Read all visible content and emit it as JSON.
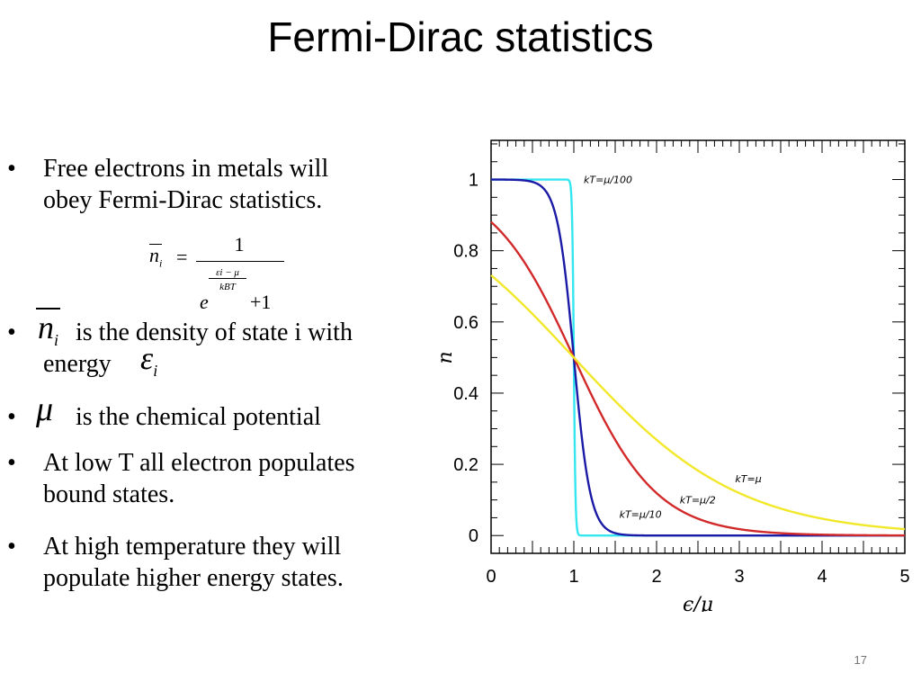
{
  "slide": {
    "title": "Fermi-Dirac statistics",
    "page_number": "17"
  },
  "bullets": [
    {
      "lines": [
        "Free electrons in metals will",
        "obey Fermi-Dirac statistics."
      ]
    },
    {
      "lines": [
        "is the density of state i with",
        "energy"
      ]
    },
    {
      "lines": [
        "is the chemical potential"
      ]
    },
    {
      "lines": [
        "At low T all electron populates",
        "bound states."
      ]
    },
    {
      "lines": [
        "At high temperature they will",
        "populate higher energy states."
      ]
    }
  ],
  "formula": {
    "lhs_symbol": "n",
    "lhs_subscript": "i",
    "equals": "=",
    "numerator": "1",
    "exp_base": "e",
    "exp_numerator": "εi − μ",
    "exp_denominator": "kBT",
    "plus_one": "+1"
  },
  "symbols": {
    "n_bar": "n",
    "n_sub": "i",
    "epsilon": "ε",
    "epsilon_sub": "i",
    "mu": "μ"
  },
  "chart_data": {
    "type": "line",
    "title": "",
    "xlabel": "ϵ/μ",
    "ylabel": "n̄",
    "xlim": [
      0,
      5
    ],
    "ylim": [
      -0.05,
      1.11
    ],
    "xticks": [
      "0",
      "1",
      "2",
      "3",
      "4",
      "5"
    ],
    "yticks": [
      "0",
      "0.2",
      "0.4",
      "0.6",
      "0.8",
      "1"
    ],
    "grid": false,
    "series": [
      {
        "name": "kT=μ/100",
        "kT_over_mu": 0.01,
        "color": "#33e6f0"
      },
      {
        "name": "kT=μ/10",
        "kT_over_mu": 0.1,
        "color": "#1a1aa6"
      },
      {
        "name": "kT=μ/2",
        "kT_over_mu": 0.5,
        "color": "#d22a2a"
      },
      {
        "name": "kT=μ",
        "kT_over_mu": 1.0,
        "color": "#f2e82a"
      }
    ]
  }
}
